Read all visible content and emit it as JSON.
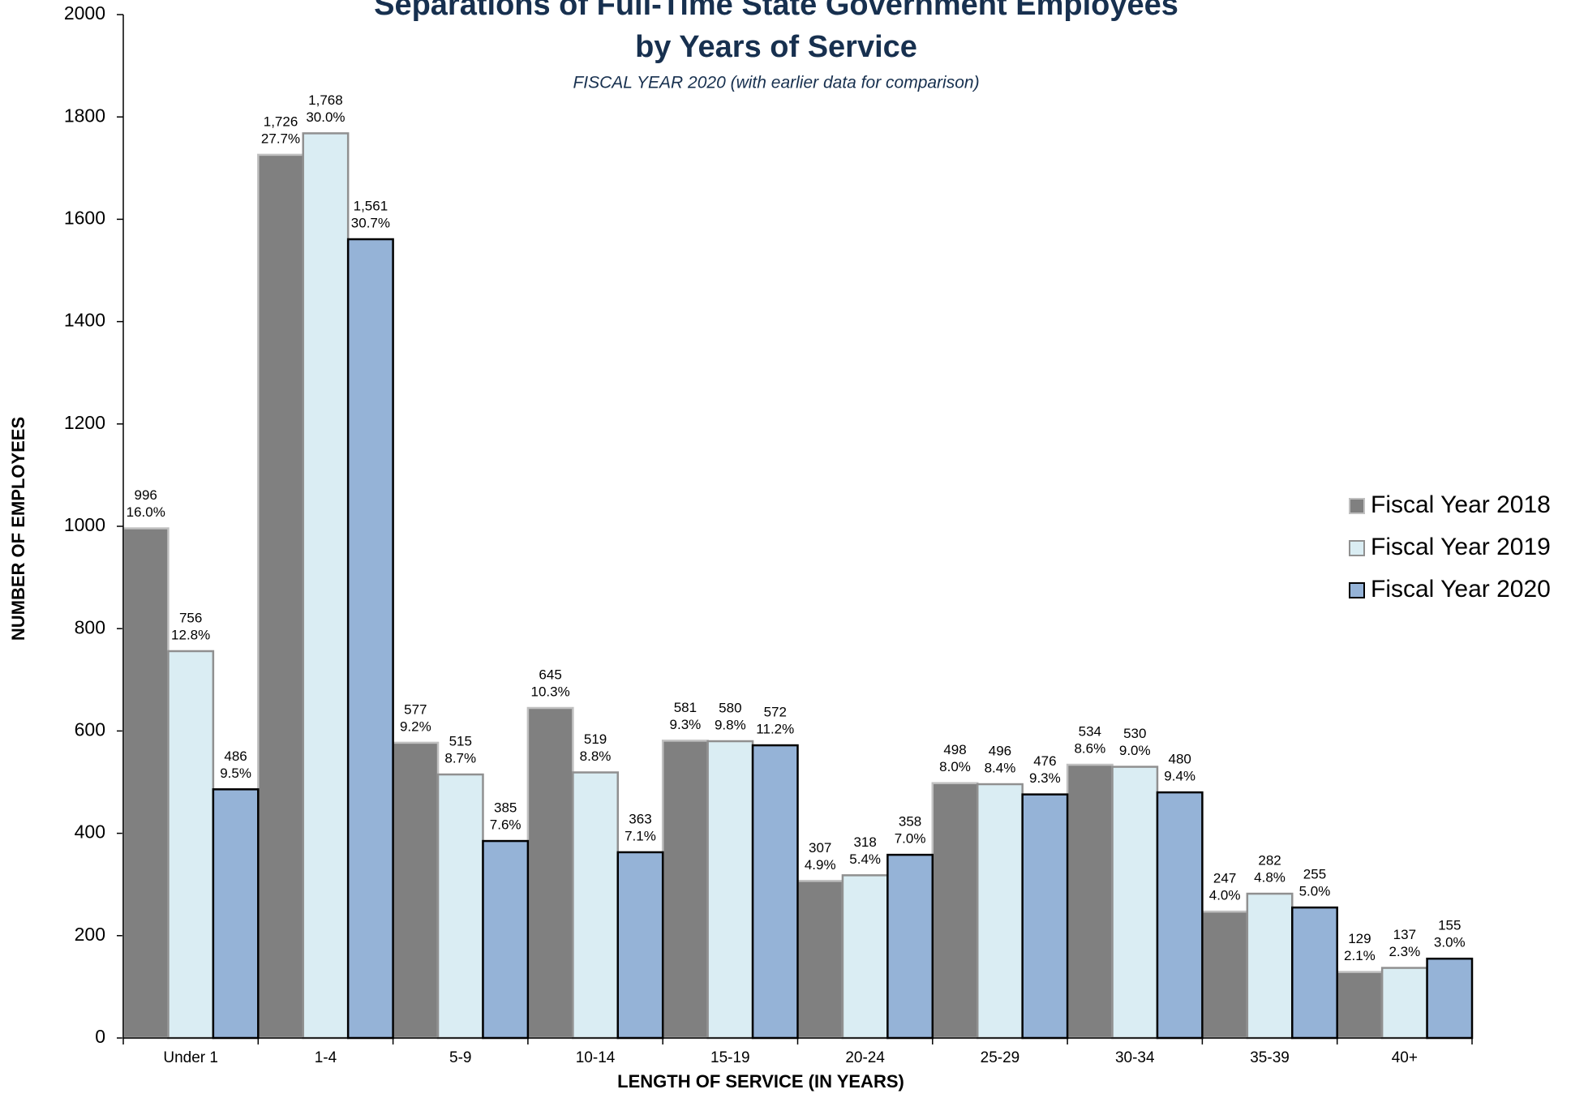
{
  "chart_data": {
    "type": "bar",
    "title": [
      "Separations of Full-Time State Government Employees",
      "by Years of Service"
    ],
    "subtitle": "FISCAL YEAR 2020 (with earlier data for comparison)",
    "y_label": "NUMBER OF EMPLOYEES",
    "x_label": "LENGTH OF SERVICE (IN YEARS)",
    "categories": [
      "Under 1",
      "1-4",
      "5-9",
      "10-14",
      "15-19",
      "20-24",
      "25-29",
      "30-34",
      "35-39",
      "40+"
    ],
    "series": [
      {
        "name": "Fiscal Year 2018",
        "color": "#808080",
        "stroke": "#c0c0c0",
        "values": [
          996,
          1726,
          577,
          645,
          581,
          307,
          498,
          534,
          247,
          129
        ],
        "value_labels": [
          "996",
          "1,726",
          "577",
          "645",
          "581",
          "307",
          "498",
          "534",
          "247",
          "129"
        ],
        "share_labels": [
          "16.0%",
          "27.7%",
          "9.2%",
          "10.3%",
          "9.3%",
          "4.9%",
          "8.0%",
          "8.6%",
          "4.0%",
          "2.1%"
        ]
      },
      {
        "name": "Fiscal Year 2019",
        "color": "#daedf3",
        "stroke": "#909090",
        "values": [
          756,
          1768,
          515,
          519,
          580,
          318,
          496,
          530,
          282,
          137
        ],
        "value_labels": [
          "756",
          "1,768",
          "515",
          "519",
          "580",
          "318",
          "496",
          "530",
          "282",
          "137"
        ],
        "share_labels": [
          "12.8%",
          "30.0%",
          "8.7%",
          "8.8%",
          "9.8%",
          "5.4%",
          "8.4%",
          "9.0%",
          "4.8%",
          "2.3%"
        ]
      },
      {
        "name": "Fiscal Year 2020",
        "color": "#95b3d7",
        "stroke": "#000000",
        "values": [
          486,
          1561,
          385,
          363,
          572,
          358,
          476,
          480,
          255,
          155
        ],
        "value_labels": [
          "486",
          "1,561",
          "385",
          "363",
          "572",
          "358",
          "476",
          "480",
          "255",
          "155"
        ],
        "share_labels": [
          "9.5%",
          "30.7%",
          "7.6%",
          "7.1%",
          "11.2%",
          "7.0%",
          "9.3%",
          "9.4%",
          "5.0%",
          "3.0%"
        ]
      }
    ],
    "ylim": [
      0,
      2000
    ],
    "yticks": [
      0,
      200,
      400,
      600,
      800,
      1000,
      1200,
      1400,
      1600,
      1800,
      2000
    ],
    "grid": false,
    "legend": "right"
  }
}
